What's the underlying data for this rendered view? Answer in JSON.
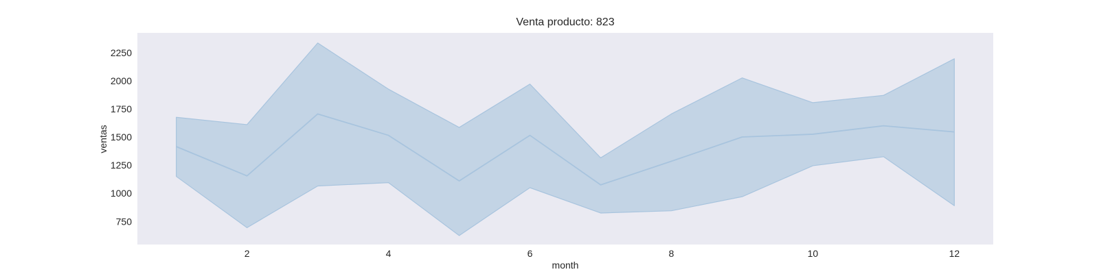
{
  "chart_data": {
    "type": "line",
    "title": "Venta producto: 823",
    "xlabel": "month",
    "ylabel": "ventas",
    "x": [
      1,
      2,
      3,
      4,
      5,
      6,
      7,
      8,
      9,
      10,
      11,
      12
    ],
    "series": [
      {
        "values": [
          1415,
          1155,
          1705,
          1515,
          1110,
          1515,
          1075,
          1285,
          1500,
          1525,
          1600,
          1545
        ],
        "band_upper": [
          1675,
          1610,
          2335,
          1925,
          1585,
          1970,
          1315,
          1705,
          2025,
          1805,
          1870,
          2195
        ],
        "band_lower": [
          1150,
          695,
          1065,
          1095,
          625,
          1050,
          825,
          845,
          970,
          1245,
          1325,
          890
        ]
      }
    ],
    "xticks": [
      2,
      4,
      6,
      8,
      10,
      12
    ],
    "yticks": [
      750,
      1000,
      1250,
      1500,
      1750,
      2000,
      2250
    ],
    "xlim": [
      0.45,
      12.55
    ],
    "ylim": [
      545,
      2425
    ],
    "grid": false,
    "legend": "none",
    "colors": {
      "plot_background": "#EAEAF2",
      "line": "#A8C4DE",
      "band_fill": "#BCD0E3"
    }
  }
}
